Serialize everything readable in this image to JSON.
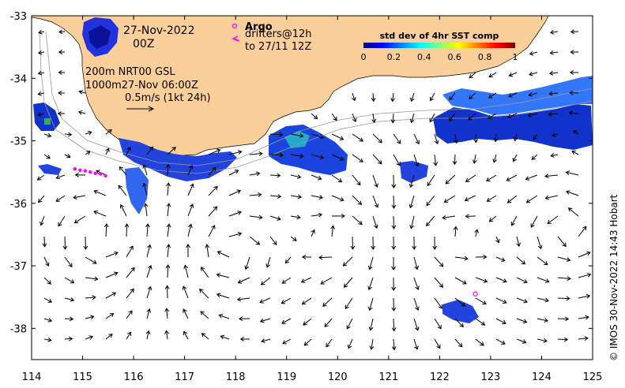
{
  "map": {
    "lon_range": [
      114,
      125
    ],
    "lat_range": [
      -38.5,
      -33
    ],
    "x_ticks": [
      114,
      115,
      116,
      117,
      118,
      119,
      120,
      121,
      122,
      123,
      124,
      125
    ],
    "y_ticks": [
      -33,
      -34,
      -35,
      -36,
      -37,
      -38
    ],
    "colors": {
      "land": "#fbcf99",
      "ocean": "#ffffff",
      "drifters": "#ff00ff",
      "argo": "#ff00ff",
      "vectors": "#000000",
      "contours": "#999999"
    }
  },
  "labels": {
    "date": "27-Nov-2022",
    "time": "00Z",
    "depths_line1": "200m  NRT00 GSL",
    "depths_line2": "1000m27-Nov 06:00Z",
    "scale": "0.5m/s (1kt 24h)",
    "argo": "Argo",
    "drifters_line1": "drifters@12h",
    "drifters_line2": "to 27/11 12Z",
    "credit": "© IMOS 30-Nov-2022 14:43 Hobart"
  },
  "colorbar": {
    "title": "std dev of 4hr SST comp",
    "ticks": [
      "0",
      "0.2",
      "0.4",
      "0.6",
      "0.8",
      "1"
    ],
    "stops": [
      "#00007f",
      "#0000ff",
      "#0080ff",
      "#00ffff",
      "#80ff80",
      "#ffff00",
      "#ff8000",
      "#ff0000",
      "#7f0000"
    ]
  },
  "argo_floats": [
    {
      "lon": 122.7,
      "lat": -37.45
    }
  ],
  "drifter_track": [
    {
      "lon": 114.85,
      "lat": -35.45
    },
    {
      "lon": 114.95,
      "lat": -35.47
    },
    {
      "lon": 115.05,
      "lat": -35.48
    },
    {
      "lon": 115.15,
      "lat": -35.5
    },
    {
      "lon": 115.25,
      "lat": -35.52
    },
    {
      "lon": 115.35,
      "lat": -35.53
    },
    {
      "lon": 115.45,
      "lat": -35.56
    }
  ]
}
